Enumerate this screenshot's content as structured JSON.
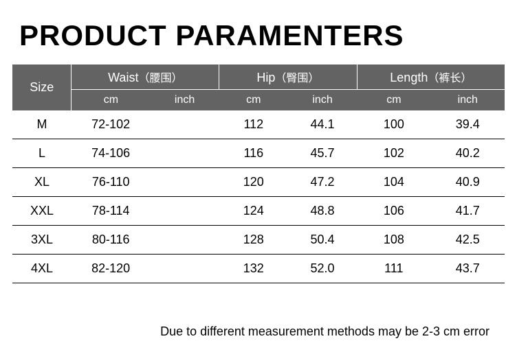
{
  "title": "PRODUCT PARAMENTERS",
  "colors": {
    "background": "#ffffff",
    "text": "#000000",
    "header_bg": "#636363",
    "header_text": "#ffffff",
    "row_divider": "#000000",
    "header_divider": "#ffffff"
  },
  "typography": {
    "title_fontsize": 42,
    "title_weight": 900,
    "header_fontsize": 18,
    "sub_header_fontsize": 16,
    "cell_fontsize": 18,
    "note_fontsize": 18,
    "font_family": "Arial"
  },
  "header": {
    "size": "Size",
    "waist": "Waist",
    "waist_cn": "（腰围）",
    "hip": "Hip",
    "hip_cn": "（臀围）",
    "length": "Length",
    "length_cn": "（裤长）",
    "cm": "cm",
    "inch": "inch"
  },
  "columns": {
    "widths_pct": [
      12,
      16,
      14,
      14,
      14,
      15,
      15
    ],
    "keys": [
      "size",
      "waist_cm",
      "waist_inch",
      "hip_cm",
      "hip_inch",
      "length_cm",
      "length_inch"
    ]
  },
  "rows": [
    {
      "size": "M",
      "waist_cm": "72-102",
      "waist_inch": "",
      "hip_cm": "112",
      "hip_inch": "44.1",
      "length_cm": "100",
      "length_inch": "39.4"
    },
    {
      "size": "L",
      "waist_cm": "74-106",
      "waist_inch": "",
      "hip_cm": "116",
      "hip_inch": "45.7",
      "length_cm": "102",
      "length_inch": "40.2"
    },
    {
      "size": "XL",
      "waist_cm": "76-110",
      "waist_inch": "",
      "hip_cm": "120",
      "hip_inch": "47.2",
      "length_cm": "104",
      "length_inch": "40.9"
    },
    {
      "size": "XXL",
      "waist_cm": "78-114",
      "waist_inch": "",
      "hip_cm": "124",
      "hip_inch": "48.8",
      "length_cm": "106",
      "length_inch": "41.7"
    },
    {
      "size": "3XL",
      "waist_cm": "80-116",
      "waist_inch": "",
      "hip_cm": "128",
      "hip_inch": "50.4",
      "length_cm": "108",
      "length_inch": "42.5"
    },
    {
      "size": "4XL",
      "waist_cm": "82-120",
      "waist_inch": "",
      "hip_cm": "132",
      "hip_inch": "52.0",
      "length_cm": "111",
      "length_inch": "43.7"
    }
  ],
  "note": "Due to different measurement methods may be 2-3 cm error"
}
